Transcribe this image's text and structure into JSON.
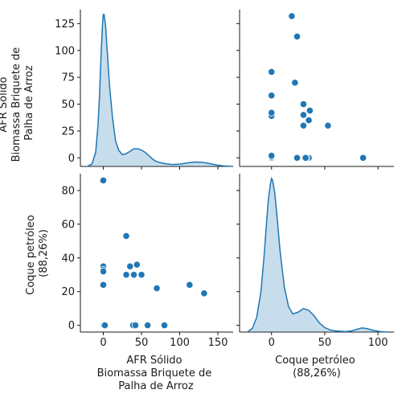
{
  "chart_data": {
    "type": "scatter",
    "title": "",
    "variables": [
      {
        "key": "afr",
        "label_lines": [
          "AFR Sólido",
          "Biomassa Briquete de",
          "Palha de Arroz"
        ],
        "ticks": [
          0,
          50,
          100,
          150
        ],
        "tick_labels": [
          "0",
          "50",
          "100",
          "150"
        ],
        "range": [
          -30,
          170
        ],
        "diag_ticks": [
          0,
          25,
          50,
          75,
          100,
          125
        ],
        "diag_tick_labels": [
          "0",
          "25",
          "50",
          "75",
          "100",
          "125"
        ],
        "diag_range": [
          -8,
          138
        ]
      },
      {
        "key": "coque",
        "label_lines": [
          "Coque petróleo",
          "(88,26%)"
        ],
        "ticks": [
          0,
          50,
          100
        ],
        "tick_labels": [
          "0",
          "50",
          "100"
        ],
        "range": [
          -30,
          115
        ],
        "axis_ticks": [
          0,
          20,
          40,
          60,
          80
        ],
        "axis_tick_labels": [
          "0",
          "20",
          "40",
          "60",
          "80"
        ],
        "axis_range": [
          -4,
          90
        ]
      }
    ],
    "points": [
      {
        "afr": 0,
        "coque": 86
      },
      {
        "afr": 0,
        "coque": 35
      },
      {
        "afr": 0,
        "coque": 33
      },
      {
        "afr": 0,
        "coque": 32
      },
      {
        "afr": 0,
        "coque": 24
      },
      {
        "afr": 0,
        "coque": 0
      },
      {
        "afr": 1,
        "coque": 0
      },
      {
        "afr": 2,
        "coque": 0
      },
      {
        "afr": 30,
        "coque": 53
      },
      {
        "afr": 30,
        "coque": 30
      },
      {
        "afr": 35,
        "coque": 35
      },
      {
        "afr": 39,
        "coque": 0
      },
      {
        "afr": 40,
        "coque": 30
      },
      {
        "afr": 42,
        "coque": 0
      },
      {
        "afr": 44,
        "coque": 36
      },
      {
        "afr": 50,
        "coque": 30
      },
      {
        "afr": 58,
        "coque": 0
      },
      {
        "afr": 70,
        "coque": 22
      },
      {
        "afr": 80,
        "coque": 0
      },
      {
        "afr": 113,
        "coque": 24
      },
      {
        "afr": 132,
        "coque": 19
      }
    ],
    "kde_afr": [
      [
        -20,
        0.4
      ],
      [
        -15,
        2
      ],
      [
        -10,
        12
      ],
      [
        -7,
        35
      ],
      [
        -5,
        60
      ],
      [
        -3,
        95
      ],
      [
        -1,
        122
      ],
      [
        0,
        130
      ],
      [
        1,
        130
      ],
      [
        3,
        120
      ],
      [
        5,
        100
      ],
      [
        8,
        70
      ],
      [
        12,
        42
      ],
      [
        16,
        22
      ],
      [
        20,
        14
      ],
      [
        25,
        10
      ],
      [
        30,
        11
      ],
      [
        35,
        13
      ],
      [
        40,
        15
      ],
      [
        45,
        15
      ],
      [
        50,
        14
      ],
      [
        55,
        12
      ],
      [
        60,
        9
      ],
      [
        65,
        6
      ],
      [
        70,
        4
      ],
      [
        80,
        2.5
      ],
      [
        90,
        1.6
      ],
      [
        100,
        2
      ],
      [
        110,
        3
      ],
      [
        120,
        3.8
      ],
      [
        130,
        3.5
      ],
      [
        140,
        2.3
      ],
      [
        150,
        1
      ],
      [
        160,
        0.3
      ],
      [
        168,
        0.05
      ]
    ],
    "kde_coque": [
      [
        -22,
        0.4
      ],
      [
        -18,
        2
      ],
      [
        -14,
        8
      ],
      [
        -10,
        22
      ],
      [
        -7,
        42
      ],
      [
        -5,
        58
      ],
      [
        -3,
        73
      ],
      [
        -1,
        82
      ],
      [
        0,
        85
      ],
      [
        1,
        84
      ],
      [
        3,
        77
      ],
      [
        5,
        65
      ],
      [
        8,
        45
      ],
      [
        12,
        25
      ],
      [
        16,
        14
      ],
      [
        20,
        10
      ],
      [
        25,
        11
      ],
      [
        30,
        13
      ],
      [
        35,
        12
      ],
      [
        40,
        9
      ],
      [
        45,
        5
      ],
      [
        50,
        2.5
      ],
      [
        55,
        1.2
      ],
      [
        60,
        0.6
      ],
      [
        70,
        0.3
      ],
      [
        75,
        0.6
      ],
      [
        80,
        1.5
      ],
      [
        85,
        2.3
      ],
      [
        90,
        1.9
      ],
      [
        95,
        1
      ],
      [
        102,
        0.3
      ],
      [
        108,
        0.05
      ]
    ],
    "kde_peak_afr": 130,
    "kde_peak_coque": 85,
    "colors": {
      "marker": "#1f77b4",
      "kde_line": "#1f77b4",
      "kde_fill": "rgba(31,119,180,0.25)",
      "marker_edge": "#ffffff"
    }
  }
}
